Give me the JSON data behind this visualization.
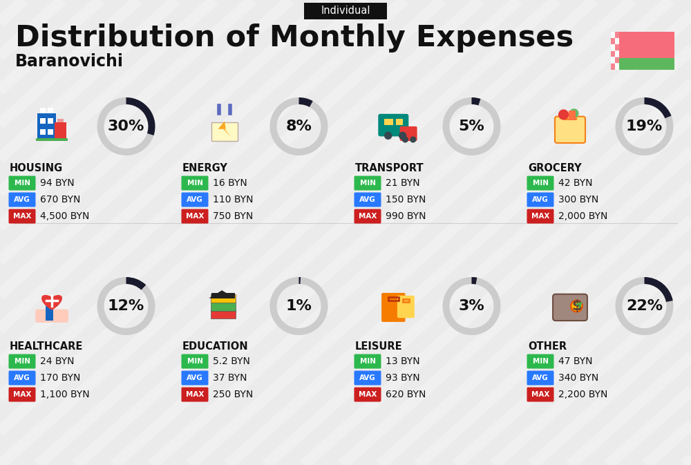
{
  "title": "Distribution of Monthly Expenses",
  "subtitle": "Individual",
  "city": "Baranovichi",
  "bg_color": "#ebebeb",
  "categories": [
    {
      "name": "HOUSING",
      "pct": 30,
      "min": "94 BYN",
      "avg": "670 BYN",
      "max": "4,500 BYN",
      "col": 0,
      "row": 0,
      "icon_color": "#1565c0"
    },
    {
      "name": "ENERGY",
      "pct": 8,
      "min": "16 BYN",
      "avg": "110 BYN",
      "max": "750 BYN",
      "col": 1,
      "row": 0,
      "icon_color": "#f9a825"
    },
    {
      "name": "TRANSPORT",
      "pct": 5,
      "min": "21 BYN",
      "avg": "150 BYN",
      "max": "990 BYN",
      "col": 2,
      "row": 0,
      "icon_color": "#00897b"
    },
    {
      "name": "GROCERY",
      "pct": 19,
      "min": "42 BYN",
      "avg": "300 BYN",
      "max": "2,000 BYN",
      "col": 3,
      "row": 0,
      "icon_color": "#e65100"
    },
    {
      "name": "HEALTHCARE",
      "pct": 12,
      "min": "24 BYN",
      "avg": "170 BYN",
      "max": "1,100 BYN",
      "col": 0,
      "row": 1,
      "icon_color": "#e53935"
    },
    {
      "name": "EDUCATION",
      "pct": 1,
      "min": "5.2 BYN",
      "avg": "37 BYN",
      "max": "250 BYN",
      "col": 1,
      "row": 1,
      "icon_color": "#1565c0"
    },
    {
      "name": "LEISURE",
      "pct": 3,
      "min": "13 BYN",
      "avg": "93 BYN",
      "max": "620 BYN",
      "col": 2,
      "row": 1,
      "icon_color": "#e65100"
    },
    {
      "name": "OTHER",
      "pct": 22,
      "min": "47 BYN",
      "avg": "340 BYN",
      "max": "2,200 BYN",
      "col": 3,
      "row": 1,
      "icon_color": "#795548"
    }
  ],
  "min_color": "#2db84d",
  "avg_color": "#2979ff",
  "max_color": "#cc1f1f",
  "label_color": "#ffffff",
  "ring_filled": "#1a1a2e",
  "ring_empty": "#cccccc",
  "flag_red": "#f76c7a",
  "flag_green": "#5db85d",
  "stripe_color": "#c0392b"
}
